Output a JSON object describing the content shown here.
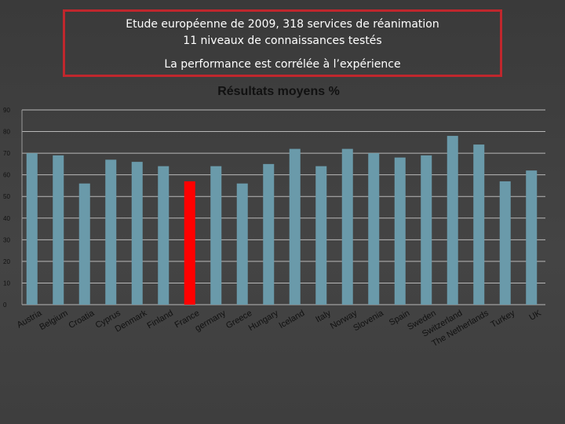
{
  "header": {
    "line1": "Etude européenne de 2009, 318 services de réanimation",
    "line2": "11 niveaux de connaissances testés",
    "line3": "La performance est corrélée à l’expérience",
    "border_color": "#c0272d"
  },
  "chart_data": {
    "type": "bar",
    "title": "Résultats  moyens %",
    "xlabel": "",
    "ylabel": "",
    "ylim": [
      0,
      90
    ],
    "yticks": [
      0,
      10,
      20,
      30,
      40,
      50,
      60,
      70,
      80,
      90
    ],
    "grid": true,
    "legend": "none",
    "categories": [
      "Austria",
      "Belgium",
      "Croatia",
      "Cyprus",
      "Denmark",
      "Finland",
      "France",
      "germany",
      "Greece",
      "Hungary",
      "Iceland",
      "Italy",
      "Norway",
      "Slovenia",
      "Spain",
      "Sweden",
      "Switzerland",
      "The Netherlands",
      "Turkey",
      "UK"
    ],
    "values": [
      70,
      69,
      56,
      67,
      66,
      64,
      57,
      64,
      56,
      65,
      72,
      64,
      72,
      70,
      68,
      69,
      78,
      74,
      57,
      62
    ],
    "bar_color": "#6a9aaa",
    "highlight_category": "France",
    "highlight_color": "#ff0000"
  }
}
